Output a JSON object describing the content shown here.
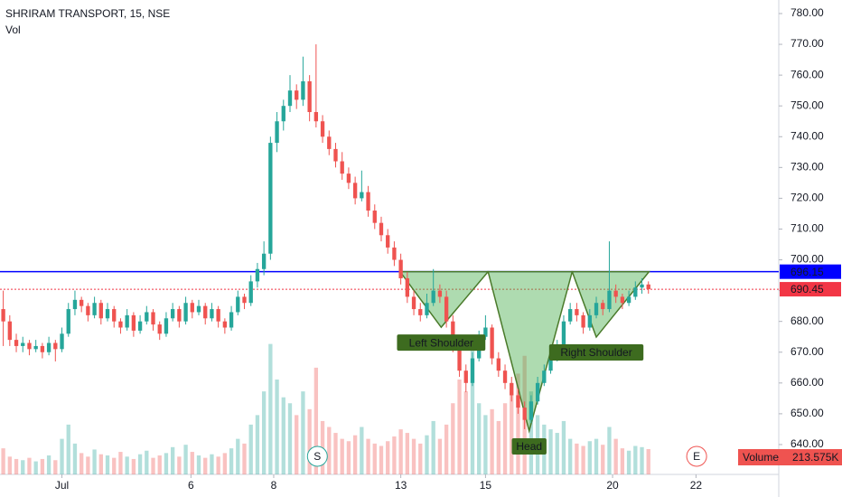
{
  "chart_data": {
    "type": "candlestick",
    "title": "SHRIRAM TRANSPORT, 15, NSE",
    "subtitle": "Vol",
    "up_color": "#26a69a",
    "down_color": "#ef5350",
    "xlim": [
      -0.5,
      119
    ],
    "ylim": [
      630.3,
      784.4
    ],
    "y2lim": [
      0,
      4000000
    ],
    "yticks": [
      {
        "value": 640,
        "label": "640.00"
      },
      {
        "value": 650,
        "label": "650.00"
      },
      {
        "value": 660,
        "label": "660.00"
      },
      {
        "value": 670,
        "label": "670.00"
      },
      {
        "value": 680,
        "label": "680.00"
      },
      {
        "value": 690,
        "label": "690.00"
      },
      {
        "value": 700,
        "label": "700.00"
      },
      {
        "value": 710,
        "label": "710.00"
      },
      {
        "value": 720,
        "label": "720.00"
      },
      {
        "value": 730,
        "label": "730.00"
      },
      {
        "value": 740,
        "label": "740.00"
      },
      {
        "value": 750,
        "label": "750.00"
      },
      {
        "value": 760,
        "label": "760.00"
      },
      {
        "value": 770,
        "label": "770.00"
      },
      {
        "value": 780,
        "label": "780.00"
      }
    ],
    "xticks": [
      {
        "value": 9,
        "label": "Jul"
      },
      {
        "value": 28.8,
        "label": "6"
      },
      {
        "value": 41.5,
        "label": "8"
      },
      {
        "value": 61,
        "label": "13"
      },
      {
        "value": 74,
        "label": "15"
      },
      {
        "value": 93.5,
        "label": "20"
      },
      {
        "value": 106.3,
        "label": "22"
      }
    ],
    "ohlc": [
      [
        684,
        690,
        672,
        680
      ],
      [
        680,
        682,
        672,
        674
      ],
      [
        674,
        676,
        670,
        672
      ],
      [
        672,
        675,
        670,
        673
      ],
      [
        673,
        674,
        669,
        671
      ],
      [
        671,
        674,
        670,
        672
      ],
      [
        672,
        673,
        668,
        670
      ],
      [
        670,
        675,
        669,
        673
      ],
      [
        673,
        674,
        667,
        671
      ],
      [
        671,
        678,
        670,
        676
      ],
      [
        676,
        686,
        675,
        684
      ],
      [
        684,
        690,
        682,
        687
      ],
      [
        687,
        688,
        683,
        685
      ],
      [
        685,
        686,
        680,
        682
      ],
      [
        682,
        688,
        681,
        686
      ],
      [
        686,
        687,
        679,
        681
      ],
      [
        681,
        686,
        680,
        684
      ],
      [
        684,
        685,
        678,
        680
      ],
      [
        680,
        681,
        676,
        678
      ],
      [
        678,
        684,
        677,
        682
      ],
      [
        682,
        683,
        675,
        677
      ],
      [
        677,
        682,
        676,
        680
      ],
      [
        680,
        685,
        679,
        683
      ],
      [
        683,
        684,
        677,
        679
      ],
      [
        679,
        680,
        674,
        676
      ],
      [
        676,
        683,
        675,
        681
      ],
      [
        681,
        686,
        680,
        684
      ],
      [
        684,
        685,
        678,
        680
      ],
      [
        680,
        688,
        679,
        686
      ],
      [
        686,
        687,
        681,
        683
      ],
      [
        683,
        687,
        682,
        685
      ],
      [
        685,
        686,
        679,
        681
      ],
      [
        681,
        686,
        680,
        684
      ],
      [
        684,
        685,
        678,
        680
      ],
      [
        680,
        681,
        676,
        678
      ],
      [
        678,
        685,
        677,
        683
      ],
      [
        683,
        690,
        682,
        688
      ],
      [
        688,
        689,
        684,
        686
      ],
      [
        686,
        695,
        685,
        693
      ],
      [
        693,
        699,
        691,
        697
      ],
      [
        697,
        706,
        695,
        702
      ],
      [
        702,
        740,
        700,
        738
      ],
      [
        738,
        748,
        735,
        745
      ],
      [
        745,
        752,
        742,
        750
      ],
      [
        750,
        760,
        748,
        755
      ],
      [
        755,
        757,
        749,
        752
      ],
      [
        752,
        766,
        750,
        758
      ],
      [
        758,
        760,
        745,
        748
      ],
      [
        748,
        770,
        743,
        745
      ],
      [
        745,
        747,
        738,
        740
      ],
      [
        740,
        742,
        734,
        736
      ],
      [
        736,
        738,
        730,
        732
      ],
      [
        732,
        735,
        726,
        728
      ],
      [
        728,
        730,
        723,
        725
      ],
      [
        725,
        727,
        718,
        720
      ],
      [
        720,
        729,
        719,
        722
      ],
      [
        722,
        724,
        714,
        716
      ],
      [
        716,
        718,
        710,
        712
      ],
      [
        712,
        714,
        706,
        708
      ],
      [
        708,
        710,
        702,
        704
      ],
      [
        704,
        706,
        698,
        700
      ],
      [
        700,
        702,
        692,
        694
      ],
      [
        694,
        696,
        686,
        688
      ],
      [
        688,
        690,
        682,
        684
      ],
      [
        684,
        686,
        680,
        682
      ],
      [
        682,
        689,
        681,
        686
      ],
      [
        686,
        697,
        685,
        690
      ],
      [
        690,
        692,
        686,
        688
      ],
      [
        688,
        690,
        678,
        680
      ],
      [
        680,
        682,
        670,
        672
      ],
      [
        672,
        674,
        662,
        664
      ],
      [
        664,
        666,
        657,
        660
      ],
      [
        660,
        670,
        659,
        668
      ],
      [
        668,
        677,
        667,
        675
      ],
      [
        675,
        682,
        674,
        678
      ],
      [
        678,
        679,
        666,
        668
      ],
      [
        668,
        670,
        662,
        664
      ],
      [
        664,
        666,
        658,
        660
      ],
      [
        660,
        662,
        654,
        656
      ],
      [
        656,
        658,
        650,
        652
      ],
      [
        652,
        654,
        645,
        648
      ],
      [
        648,
        656,
        647,
        654
      ],
      [
        654,
        662,
        653,
        660
      ],
      [
        660,
        666,
        659,
        664
      ],
      [
        664,
        670,
        663,
        668
      ],
      [
        668,
        674,
        667,
        672
      ],
      [
        672,
        682,
        671,
        680
      ],
      [
        680,
        686,
        679,
        684
      ],
      [
        684,
        686,
        680,
        682
      ],
      [
        682,
        683,
        676,
        678
      ],
      [
        678,
        684,
        677,
        682
      ],
      [
        682,
        688,
        681,
        686
      ],
      [
        686,
        687,
        682,
        684
      ],
      [
        684,
        706,
        683,
        690
      ],
      [
        690,
        692,
        686,
        688
      ],
      [
        688,
        689,
        684,
        686
      ],
      [
        686,
        690,
        685,
        688
      ],
      [
        688,
        693,
        687,
        691
      ],
      [
        691,
        694,
        689,
        692
      ],
      [
        692,
        693,
        689,
        690.45
      ]
    ],
    "volume": [
      220000,
      150000,
      130000,
      120000,
      140000,
      110000,
      130000,
      160000,
      120000,
      300000,
      420000,
      260000,
      180000,
      150000,
      210000,
      170000,
      160000,
      140000,
      190000,
      150000,
      130000,
      170000,
      200000,
      140000,
      160000,
      180000,
      230000,
      150000,
      250000,
      190000,
      160000,
      140000,
      170000,
      150000,
      180000,
      220000,
      300000,
      260000,
      420000,
      500000,
      700000,
      1100000,
      800000,
      650000,
      600000,
      500000,
      700000,
      550000,
      900000,
      450000,
      400000,
      350000,
      300000,
      280000,
      330000,
      400000,
      300000,
      260000,
      240000,
      280000,
      320000,
      380000,
      350000,
      300000,
      260000,
      330000,
      450000,
      300000,
      420000,
      600000,
      800000,
      700000,
      1100000,
      600000,
      500000,
      550000,
      450000,
      600000,
      700000,
      850000,
      1000000,
      700000,
      500000,
      420000,
      380000,
      350000,
      450000,
      300000,
      260000,
      240000,
      280000,
      300000,
      250000,
      400000,
      300000,
      220000,
      200000,
      240000,
      230000,
      213575
    ],
    "levels": [
      {
        "value": 696.15,
        "color": "#0000ff",
        "style": "solid"
      },
      {
        "value": 690.45,
        "color": "#f23645",
        "style": "dotted"
      }
    ],
    "patterns": [
      {
        "label": "Left Shoulder",
        "points": [
          [
            60.9,
            696.15
          ],
          [
            67.2,
            678.1
          ],
          [
            74.4,
            696.15
          ]
        ]
      },
      {
        "label": "Head",
        "points": [
          [
            74.4,
            696.15
          ],
          [
            80.7,
            644.4
          ],
          [
            87.3,
            696.15
          ]
        ]
      },
      {
        "label": "Right Shoulder",
        "points": [
          [
            87.3,
            696.15
          ],
          [
            91,
            674.9
          ],
          [
            99.1,
            696.15
          ]
        ]
      }
    ],
    "events": [
      {
        "label": "S",
        "x": 48.2,
        "color": "#26a69a"
      },
      {
        "label": "E",
        "x": 106.4,
        "color": "#ef5350"
      }
    ],
    "volume_legend": {
      "name": "Volume",
      "value": 213575,
      "value_label": "213.575K"
    }
  }
}
